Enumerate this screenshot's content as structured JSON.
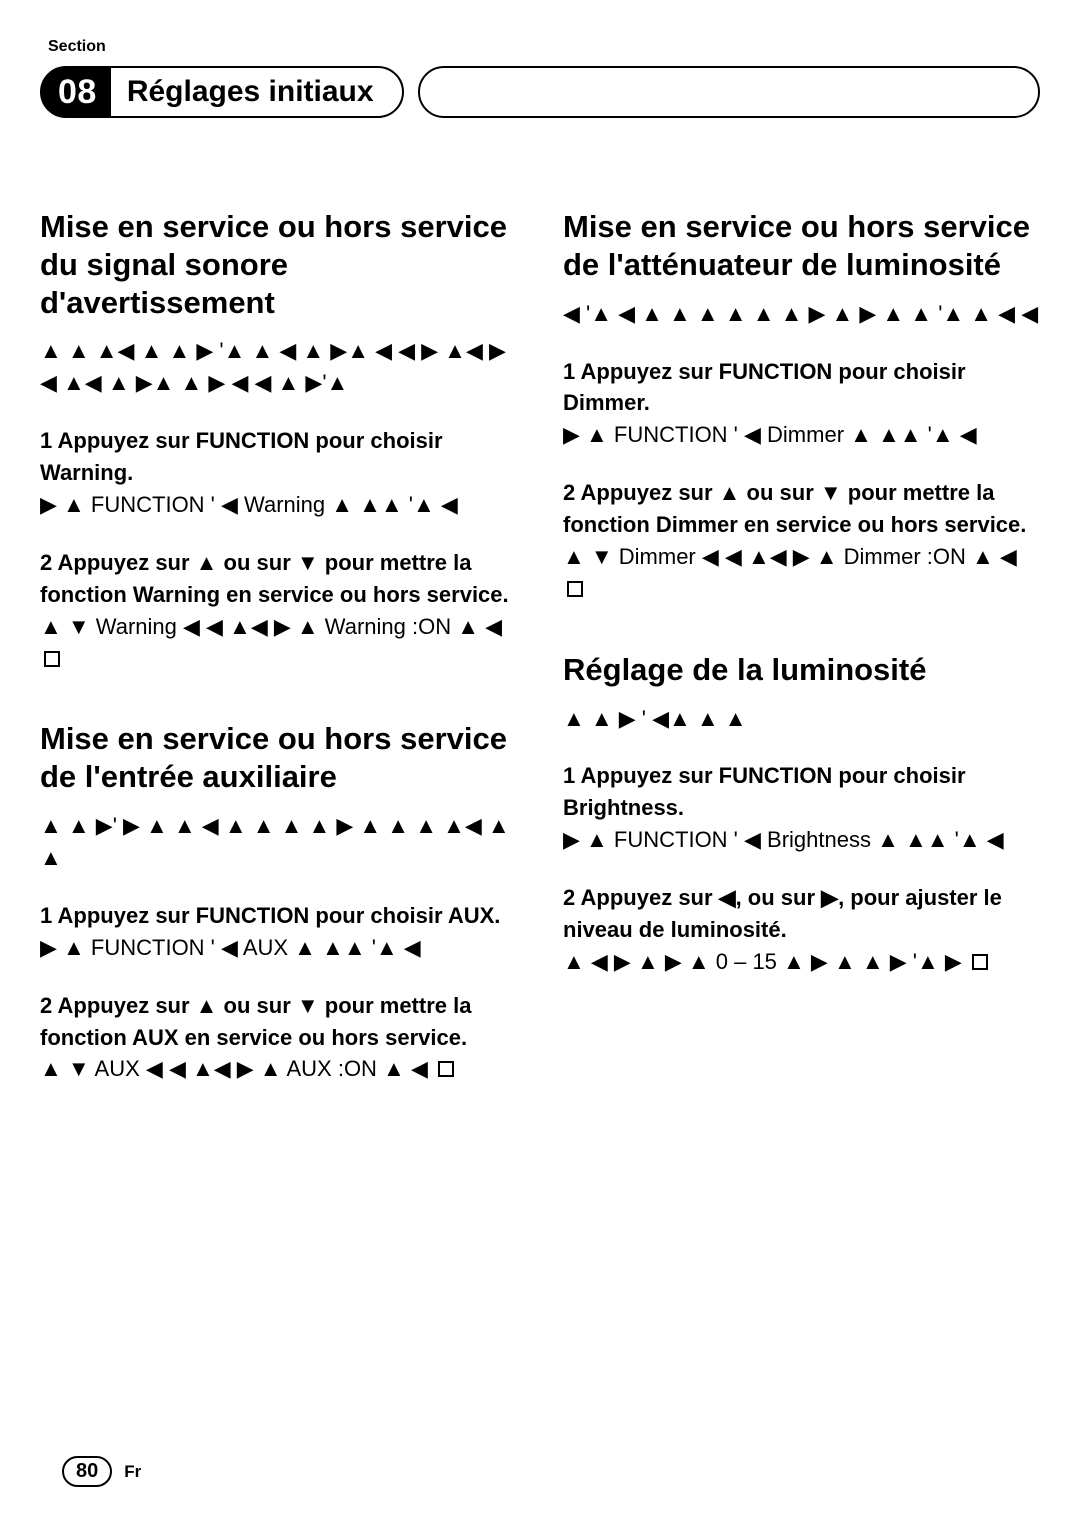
{
  "section_label": "Section",
  "chapter_number": "08",
  "chapter_title": "Réglages initiaux",
  "page_number": "80",
  "lang_code": "Fr",
  "glyphs": {
    "up": "▲",
    "down": "▼",
    "left": "◀",
    "right": "▶"
  },
  "left_column": {
    "sec1": {
      "title": "Mise en service ou hors service du signal sonore d'avertissement",
      "intro": "▲ ▲ ▲◀ ▲ ▲ ▶ '▲ ▲ ◀ ▲ ▶▲ ◀ ◀ ▶ ▲◀ ▶ ◀ ▲◀ ▲ ▶▲ ▲ ▶ ◀ ◀ ▲ ▶'▲",
      "step1_lead": "1   Appuyez sur FUNCTION pour choisir Warning.",
      "step1_body": "▶ ▲ FUNCTION ' ◀ Warning ▲ ▲▲ '▲ ◀",
      "step2_lead": "2   Appuyez sur ▲ ou sur ▼ pour mettre la fonction Warning en service ou hors service.",
      "step2_body": "▲ ▼ Warning ◀ ◀ ▲◀ ▶ ▲ Warning :ON ▲ ◀"
    },
    "sec2": {
      "title": "Mise en service ou hors service de l'entrée auxiliaire",
      "intro": "▲ ▲ ▶' ▶ ▲ ▲ ◀ ▲ ▲ ▲ ▲ ▶ ▲ ▲ ▲ ▲◀ ▲ ▲",
      "step1_lead": "1   Appuyez sur FUNCTION pour choisir AUX.",
      "step1_body": "▶ ▲ FUNCTION ' ◀ AUX ▲ ▲▲ '▲ ◀",
      "step2_lead": "2   Appuyez sur ▲ ou sur ▼ pour mettre la fonction AUX en service ou hors service.",
      "step2_body": "▲ ▼ AUX ◀ ◀ ▲◀ ▶ ▲ AUX :ON ▲ ◀"
    }
  },
  "right_column": {
    "sec1": {
      "title": "Mise en service ou hors service de l'atténuateur de luminosité",
      "intro": "◀ '▲ ◀ ▲ ▲ ▲ ▲ ▲ ▲ ▶ ▲ ▶ ▲ ▲ '▲ ▲ ◀ ◀",
      "step1_lead": "1   Appuyez sur FUNCTION pour choisir Dimmer.",
      "step1_body": "▶ ▲ FUNCTION ' ◀ Dimmer ▲ ▲▲ '▲ ◀",
      "step2_lead": "2   Appuyez sur ▲ ou sur ▼ pour mettre la fonction Dimmer en service ou hors service.",
      "step2_body": "▲ ▼ Dimmer ◀ ◀ ▲◀ ▶ ▲ Dimmer :ON ▲ ◀"
    },
    "sec2": {
      "title": "Réglage de la luminosité",
      "intro": "▲ ▲ ▶ ' ◀▲ ▲ ▲",
      "step1_lead": "1   Appuyez sur FUNCTION pour choisir Brightness.",
      "step1_body": "▶ ▲ FUNCTION ' ◀ Brightness ▲ ▲▲ '▲ ◀",
      "step2_lead": "2   Appuyez sur ◀, ou sur ▶, pour ajuster le niveau de luminosité.",
      "step2_body": "▲ ◀ ▶ ▲ ▶ ▲ 0 – 15 ▲ ▶ ▲ ▲ ▶ '▲ ▶"
    }
  }
}
